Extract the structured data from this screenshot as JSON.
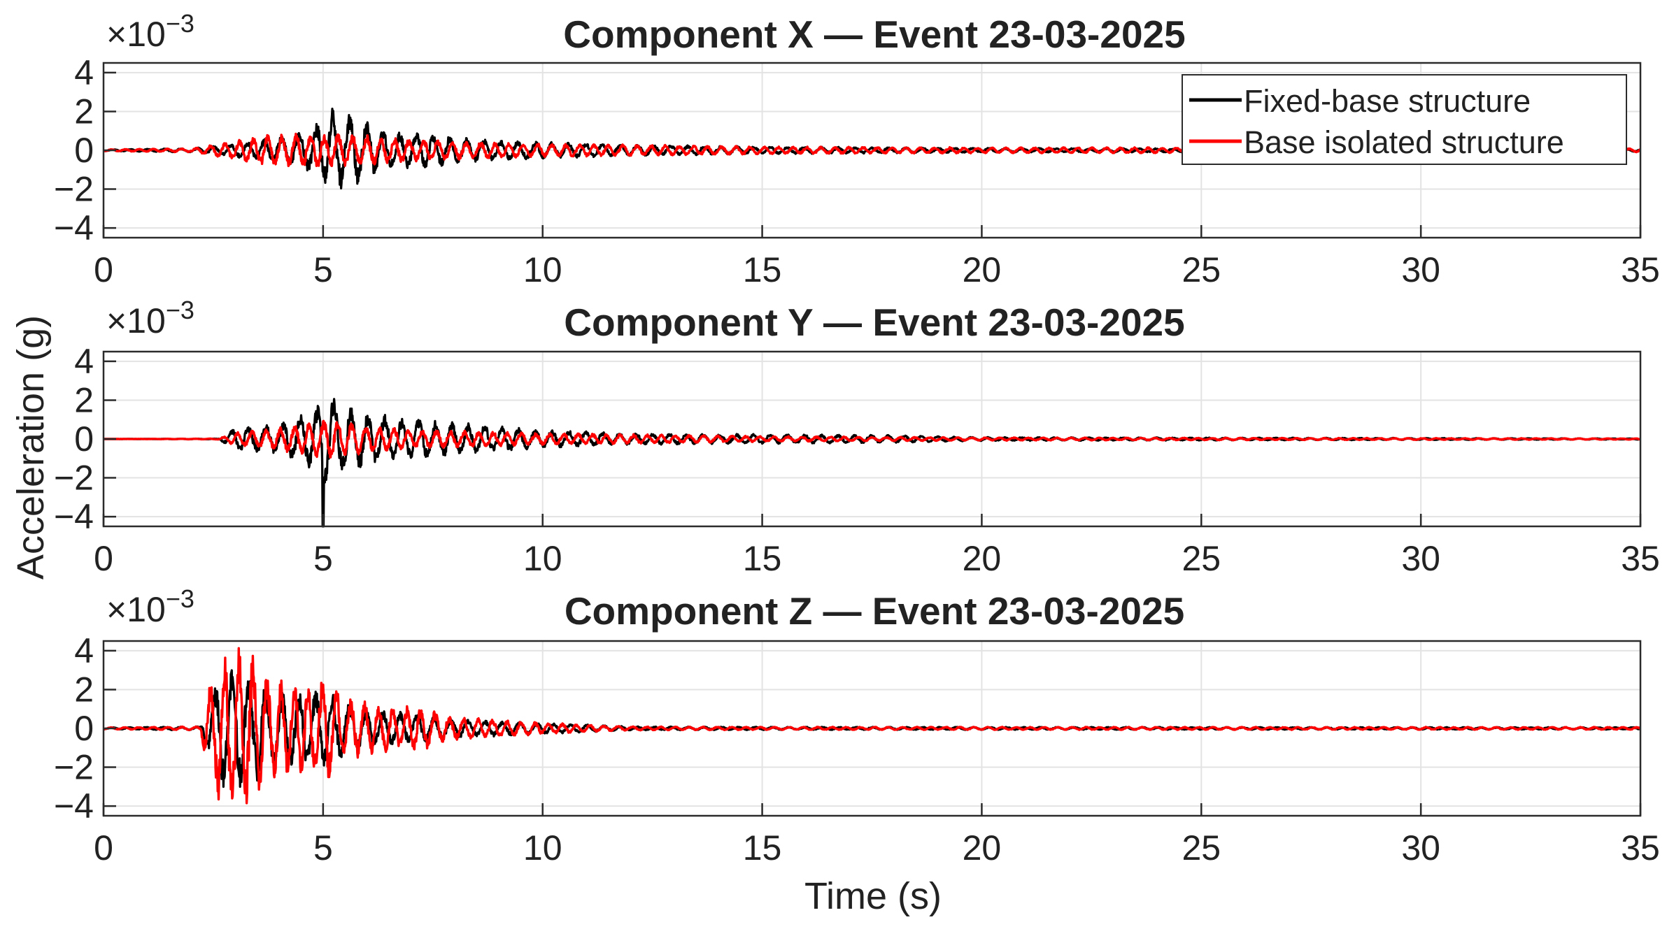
{
  "chart_data": {
    "type": "line",
    "shared_ylabel": "Acceleration (g)",
    "xlabel": "Time (s)",
    "legend": {
      "placement": "top-right of first panel",
      "entries": [
        {
          "name": "Fixed-base structure",
          "color": "#000000"
        },
        {
          "name": "Base isolated structure",
          "color": "#ff0000"
        }
      ]
    },
    "grid": true,
    "panels": [
      {
        "title": "Component X — Event 23-03-2025",
        "exponent_label": "×10",
        "exponent": "−3",
        "xlim": [
          0,
          35
        ],
        "ylim": [
          -4.5,
          4.5
        ],
        "xticks": [
          0,
          5,
          10,
          15,
          20,
          25,
          30,
          35
        ],
        "yticks": [
          4,
          2,
          0,
          -2,
          -4
        ],
        "ytick_labels": [
          "4",
          "2",
          "0",
          "−2",
          "−4"
        ],
        "series": [
          {
            "name": "Fixed-base structure",
            "color": "#000000",
            "envelope": {
              "t": [
                0,
                2,
                3,
                4,
                4.7,
                5.2,
                5.8,
                6.5,
                7.5,
                8.5,
                10,
                12,
                15,
                20,
                25,
                35
              ],
              "amp": [
                0.05,
                0.1,
                0.35,
                0.7,
                1.1,
                2.2,
                1.8,
                1.0,
                0.9,
                0.6,
                0.45,
                0.3,
                0.2,
                0.12,
                0.1,
                0.08
              ]
            }
          },
          {
            "name": "Base isolated structure",
            "color": "#ff0000",
            "envelope": {
              "t": [
                0,
                2,
                3,
                3.5,
                5,
                6,
                7,
                8,
                10,
                12,
                15,
                20,
                25,
                35
              ],
              "amp": [
                0.05,
                0.1,
                0.5,
                0.8,
                0.9,
                0.8,
                0.6,
                0.5,
                0.35,
                0.3,
                0.2,
                0.15,
                0.15,
                0.1
              ]
            }
          }
        ]
      },
      {
        "title": "Component Y — Event 23-03-2025",
        "exponent_label": "×10",
        "exponent": "−3",
        "xlim": [
          0,
          35
        ],
        "ylim": [
          -4.5,
          4.5
        ],
        "xticks": [
          0,
          5,
          10,
          15,
          20,
          25,
          30,
          35
        ],
        "yticks": [
          4,
          2,
          0,
          -2,
          -4
        ],
        "ytick_labels": [
          "4",
          "2",
          "0",
          "−2",
          "−4"
        ],
        "series": [
          {
            "name": "Fixed-base structure",
            "color": "#000000",
            "envelope": {
              "t": [
                0,
                2.6,
                3,
                4,
                4.8,
                5.1,
                5.5,
                6.5,
                7.5,
                8.5,
                10,
                12,
                15,
                18,
                20,
                35
              ],
              "amp": [
                0.0,
                0.02,
                0.6,
                0.8,
                1.6,
                2.6,
                1.8,
                1.2,
                1.0,
                0.8,
                0.5,
                0.3,
                0.25,
                0.2,
                0.1,
                0.03
              ]
            },
            "spikes": [
              {
                "t": 5.0,
                "value": -4.5
              }
            ]
          },
          {
            "name": "Base isolated structure",
            "color": "#ff0000",
            "envelope": {
              "t": [
                0,
                2.6,
                3,
                4,
                5.2,
                6,
                7,
                8,
                10,
                12,
                15,
                20,
                35
              ],
              "amp": [
                0.0,
                0.02,
                0.35,
                0.6,
                1.1,
                0.7,
                0.5,
                0.45,
                0.3,
                0.25,
                0.15,
                0.08,
                0.03
              ]
            }
          }
        ]
      },
      {
        "title": "Component Z — Event 23-03-2025",
        "exponent_label": "×10",
        "exponent": "−3",
        "xlim": [
          0,
          35
        ],
        "ylim": [
          -4.5,
          4.5
        ],
        "xticks": [
          0,
          5,
          10,
          15,
          20,
          25,
          30,
          35
        ],
        "yticks": [
          4,
          2,
          0,
          -2,
          -4
        ],
        "ytick_labels": [
          "4",
          "2",
          "0",
          "−2",
          "−4"
        ],
        "series": [
          {
            "name": "Fixed-base structure",
            "color": "#000000",
            "envelope": {
              "t": [
                0,
                2.2,
                2.4,
                2.7,
                3.3,
                4,
                5,
                6,
                7,
                8,
                9,
                10,
                12,
                15,
                35
              ],
              "amp": [
                0.05,
                0.1,
                1.5,
                3.2,
                3.0,
                2.0,
                2.0,
                1.0,
                0.8,
                0.5,
                0.4,
                0.3,
                0.1,
                0.08,
                0.06
              ]
            }
          },
          {
            "name": "Base isolated structure",
            "color": "#ff0000",
            "envelope": {
              "t": [
                0,
                2.2,
                2.4,
                2.7,
                3.3,
                3.8,
                4.5,
                5.1,
                5.6,
                6.5,
                7.3,
                8,
                9,
                10,
                11,
                12,
                15,
                35
              ],
              "amp": [
                0.05,
                0.1,
                2.5,
                4.3,
                4.2,
                2.6,
                2.4,
                2.7,
                1.6,
                1.2,
                1.1,
                0.6,
                0.45,
                0.3,
                0.2,
                0.1,
                0.08,
                0.07
              ]
            }
          }
        ]
      }
    ]
  }
}
